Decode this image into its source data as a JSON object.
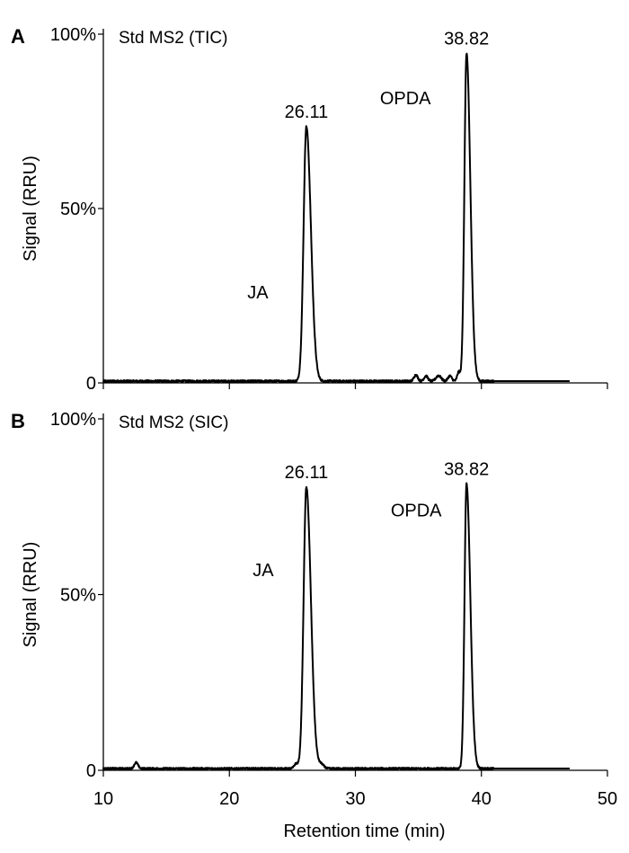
{
  "chart_data": [
    {
      "type": "line",
      "panel_label": "A",
      "title": "Std MS2 (TIC)",
      "xlabel": "",
      "ylabel": "Signal (RRU)",
      "xlim": [
        10,
        50
      ],
      "ylim": [
        0,
        100
      ],
      "x_ticks": [
        10,
        20,
        30,
        40,
        50
      ],
      "x_tick_labels_shown": false,
      "y_ticks": [
        0,
        50,
        100
      ],
      "y_tick_labels": [
        "0",
        "50%",
        "100%"
      ],
      "grid": false,
      "x_end": 47,
      "baseline": 0.5,
      "noise": 0.6,
      "small_bumps": [
        {
          "x": 34.8,
          "y": 1.8,
          "w": 0.15
        },
        {
          "x": 35.6,
          "y": 1.5,
          "w": 0.15
        },
        {
          "x": 36.6,
          "y": 1.6,
          "w": 0.2
        },
        {
          "x": 37.5,
          "y": 1.5,
          "w": 0.15
        },
        {
          "x": 38.2,
          "y": 2.6,
          "w": 0.12
        }
      ],
      "peaks": [
        {
          "name": "JA",
          "rt": 26.11,
          "rt_label": "26.11",
          "height": 73.0,
          "w_left": 0.22,
          "w_right": 0.36
        },
        {
          "name": "OPDA",
          "rt": 38.82,
          "rt_label": "38.82",
          "height": 94.0,
          "w_left": 0.17,
          "w_right": 0.3
        }
      ]
    },
    {
      "type": "line",
      "panel_label": "B",
      "title": "Std MS2 (SIC)",
      "xlabel": "Retention time (min)",
      "ylabel": "Signal (RRU)",
      "xlim": [
        10,
        50
      ],
      "ylim": [
        0,
        100
      ],
      "x_ticks": [
        10,
        20,
        30,
        40,
        50
      ],
      "x_tick_labels": [
        "10",
        "20",
        "30",
        "40",
        "50"
      ],
      "x_tick_labels_shown": true,
      "y_ticks": [
        0,
        50,
        100
      ],
      "y_tick_labels": [
        "0",
        "50%",
        "100%"
      ],
      "grid": false,
      "x_end": 47,
      "baseline": 0.5,
      "noise": 0.5,
      "small_bumps": [
        {
          "x": 12.6,
          "y": 1.7,
          "w": 0.15
        },
        {
          "x": 25.3,
          "y": 1.4,
          "w": 0.15
        },
        {
          "x": 27.3,
          "y": 1.2,
          "w": 0.2
        }
      ],
      "peaks": [
        {
          "name": "JA",
          "rt": 26.11,
          "rt_label": "26.11",
          "height": 80.0,
          "w_left": 0.22,
          "w_right": 0.36
        },
        {
          "name": "OPDA",
          "rt": 38.82,
          "rt_label": "38.82",
          "height": 81.0,
          "w_left": 0.16,
          "w_right": 0.3
        }
      ]
    }
  ]
}
